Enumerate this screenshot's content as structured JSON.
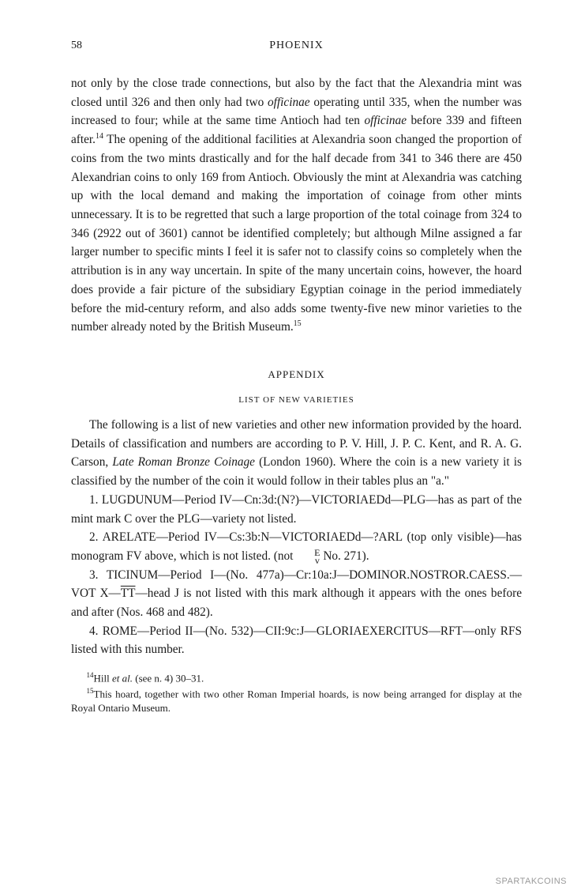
{
  "page_number": "58",
  "header_title": "PHOENIX",
  "body_paragraph": {
    "text_before_officinae1": "not only by the close trade connections, but also by the fact that the Alexandria mint was closed until 326 and then only had two ",
    "officinae1": "officinae",
    "text_mid1": " operating until 335, when the number was increased to four; while at the same time Antioch had ten ",
    "officinae2": "officinae",
    "text_mid2": " before 339 and fifteen after.",
    "fn14_marker": "14",
    "text_after_fn14": " The opening of the additional facilities at Alexandria soon changed the proportion of coins from the two mints drastically and for the half decade from 341 to 346 there are 450 Alexandrian coins to only 169 from Antioch. Obviously the mint at Alexandria was catching up with the local demand and making the importation of coinage from other mints unnecessary. It is to be regretted that such a large proportion of the total coinage from 324 to 346 (2922 out of 3601) cannot be identified completely; but although Milne assigned a far larger number to specific mints I feel it is safer not to classify coins so completely when the attribution is in any way uncertain. In spite of the many uncertain coins, however, the hoard does provide a fair picture of the subsidiary Egyptian coinage in the period immediately before the mid-century reform, and also adds some twenty-five new minor varieties to the number already noted by the British Museum.",
    "fn15_marker": "15"
  },
  "appendix_title": "APPENDIX",
  "list_title": "LIST OF NEW VARIETIES",
  "appendix_intro": {
    "text_before_italic": "The following is a list of new varieties and other new information provided by the hoard. Details of classification and numbers are according to P. V. Hill, J. P. C. Kent, and R. A. G. Carson, ",
    "italic_title": "Late Roman Bronze Coinage",
    "text_after_italic": " (London 1960). Where the coin is a new variety it is classified by the number of the coin it would follow in their tables plus an \"a.\""
  },
  "entries": {
    "e1": "1. LUGDUNUM—Period IV—Cn:3d:(N?)—VICTORIAEDd—PLG—has as part of the mint mark C over the PLG—variety not listed.",
    "e2_before": "2. ARELATE—Period IV—Cs:3b:N—VICTORIAEDd—?ARL (top only visible)—has monogram FV above, which is not listed. (not ",
    "e2_stack_top": "E",
    "e2_stack_bot": "v",
    "e2_after": " No. 271).",
    "e3_before": "3. TICINUM—Period I—(No. 477a)—Cr:10a:J—DOMINOR.NOSTROR.CAESS.—VOT X—",
    "e3_overline": "TT",
    "e3_after": "—head J is not listed with this mark although it appears with the ones before and after (Nos. 468 and 482).",
    "e4": "4. ROME—Period II—(No. 532)—CII:9c:J—GLORIAEXERCITUS—RFT—only RFS listed with this number."
  },
  "footnotes": {
    "fn14_marker": "14",
    "fn14_before": "Hill ",
    "fn14_italic": "et al.",
    "fn14_after": " (see n. 4) 30–31.",
    "fn15_marker": "15",
    "fn15_text": "This hoard, together with two other Roman Imperial hoards, is now being arranged for display at the Royal Ontario Museum."
  },
  "watermark": "SPARTAKCOINS"
}
